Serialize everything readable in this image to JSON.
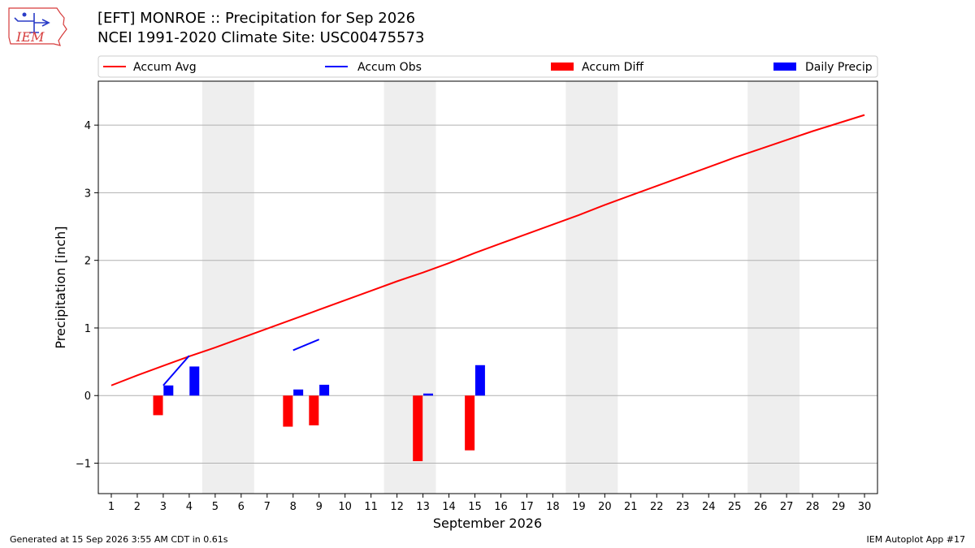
{
  "header": {
    "title_line1": "[EFT] MONROE :: Precipitation for Sep 2026",
    "title_line2": "NCEI 1991-2020 Climate Site: USC00475573",
    "logo_text": "IEM"
  },
  "footer": {
    "generated": "Generated at 15 Sep 2026 3:55 AM CDT in 0.61s",
    "app": "IEM Autoplot App #17"
  },
  "colors": {
    "accum_avg": "#ff0000",
    "accum_obs": "#0000ff",
    "accum_diff": "#ff0000",
    "daily_precip": "#0000ff",
    "weekend_band": "#eeeeee",
    "grid": "#b0b0b0"
  },
  "chart_data": {
    "type": "bar",
    "xlabel": "September 2026",
    "ylabel": "Precipitation [inch]",
    "xlim": [
      0.5,
      30.5
    ],
    "ylim": [
      -1.45,
      4.65
    ],
    "yticks": [
      -1,
      0,
      1,
      2,
      3,
      4
    ],
    "ytick_labels": [
      "−1",
      "0",
      "1",
      "2",
      "3",
      "4"
    ],
    "days": [
      1,
      2,
      3,
      4,
      5,
      6,
      7,
      8,
      9,
      10,
      11,
      12,
      13,
      14,
      15,
      16,
      17,
      18,
      19,
      20,
      21,
      22,
      23,
      24,
      25,
      26,
      27,
      28,
      29,
      30
    ],
    "weekend_spans": [
      [
        4.5,
        6.5
      ],
      [
        11.5,
        13.5
      ],
      [
        18.5,
        20.5
      ],
      [
        25.5,
        27.5
      ]
    ],
    "grid": "horizontal",
    "legend": {
      "placement": "top",
      "entries": [
        {
          "label": "Accum Avg",
          "kind": "line",
          "series": "accum_avg"
        },
        {
          "label": "Accum Obs",
          "kind": "line",
          "series": "accum_obs"
        },
        {
          "label": "Accum Diff",
          "kind": "patch",
          "series": "accum_diff"
        },
        {
          "label": "Daily Precip",
          "kind": "patch",
          "series": "daily_precip"
        }
      ]
    },
    "series": [
      {
        "name": "Accum Avg",
        "key": "accum_avg",
        "type": "line",
        "x": [
          1,
          2,
          3,
          4,
          5,
          6,
          7,
          8,
          9,
          10,
          11,
          12,
          13,
          14,
          15,
          16,
          17,
          18,
          19,
          20,
          21,
          22,
          23,
          24,
          25,
          26,
          27,
          28,
          29,
          30
        ],
        "values": [
          0.15,
          0.3,
          0.44,
          0.58,
          0.71,
          0.85,
          0.99,
          1.13,
          1.27,
          1.41,
          1.55,
          1.69,
          1.82,
          1.96,
          2.11,
          2.25,
          2.39,
          2.53,
          2.67,
          2.82,
          2.96,
          3.1,
          3.24,
          3.38,
          3.52,
          3.65,
          3.78,
          3.91,
          4.03,
          4.15
        ]
      },
      {
        "name": "Accum Obs",
        "key": "accum_obs",
        "type": "line",
        "segments": [
          {
            "x": [
              3,
              4
            ],
            "values": [
              0.15,
              0.59
            ]
          },
          {
            "x": [
              8,
              9
            ],
            "values": [
              0.67,
              0.83
            ]
          }
        ]
      },
      {
        "name": "Accum Diff",
        "key": "accum_diff",
        "type": "bar",
        "offset": -0.2,
        "x": [
          3,
          8,
          9,
          13,
          15
        ],
        "values": [
          -0.29,
          -0.46,
          -0.44,
          -0.97,
          -0.81
        ]
      },
      {
        "name": "Daily Precip",
        "key": "daily_precip",
        "type": "bar",
        "offset": 0.2,
        "x": [
          3,
          4,
          8,
          9,
          13,
          15
        ],
        "values": [
          0.15,
          0.43,
          0.09,
          0.16,
          0.03,
          0.45
        ]
      }
    ]
  }
}
